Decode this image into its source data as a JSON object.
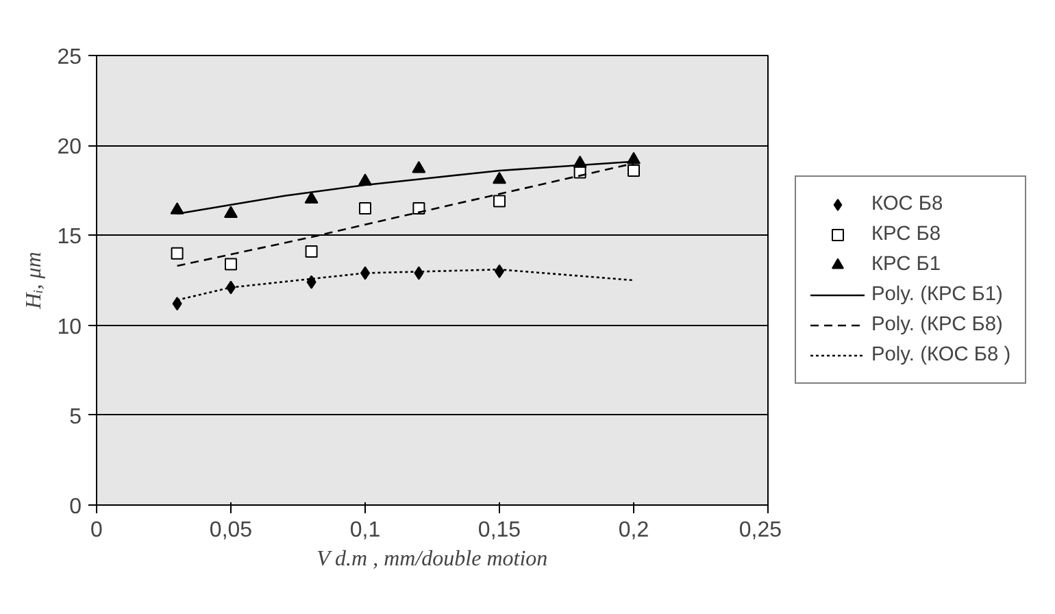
{
  "chart_data": {
    "type": "scatter",
    "xlabel": "V d.m , mm/double motion",
    "ylabel": "Hᵢ, μm",
    "xlim": [
      0,
      0.25
    ],
    "ylim": [
      0,
      25
    ],
    "xticks": [
      0,
      {
        "value": 0.05,
        "label": "0,05"
      },
      {
        "value": 0.1,
        "label": "0,1"
      },
      {
        "value": 0.15,
        "label": "0,15"
      },
      {
        "value": 0.2,
        "label": "0,2"
      },
      {
        "value": 0.25,
        "label": "0,25"
      }
    ],
    "yticks": [
      0,
      5,
      10,
      15,
      20,
      25
    ],
    "grid": "y",
    "legend": "right",
    "series": [
      {
        "name": "КОС Б8",
        "marker": "diamond",
        "color": "#000000",
        "x": [
          0.03,
          0.05,
          0.08,
          0.1,
          0.12,
          0.15
        ],
        "values": [
          11.2,
          12.1,
          12.4,
          12.9,
          12.9,
          13.0
        ]
      },
      {
        "name": "КРС Б8",
        "marker": "square",
        "color": "#000000",
        "x": [
          0.03,
          0.05,
          0.08,
          0.1,
          0.12,
          0.15,
          0.18,
          0.2
        ],
        "values": [
          14.0,
          13.4,
          14.1,
          16.5,
          16.5,
          16.9,
          18.5,
          18.6
        ]
      },
      {
        "name": "КРС Б1",
        "marker": "triangle",
        "color": "#000000",
        "x": [
          0.03,
          0.05,
          0.08,
          0.1,
          0.12,
          0.15,
          0.18,
          0.2
        ],
        "values": [
          16.4,
          16.2,
          17.0,
          18.0,
          18.7,
          18.1,
          19.0,
          19.2
        ]
      },
      {
        "name": "Poly. (КРС Б1)",
        "type": "line",
        "line_style": "solid",
        "color": "#000000",
        "x": [
          0.03,
          0.07,
          0.1,
          0.15,
          0.2
        ],
        "values": [
          16.2,
          17.2,
          17.8,
          18.6,
          19.1
        ]
      },
      {
        "name": "Poly. (КРС Б8)",
        "type": "line",
        "line_style": "dashed",
        "color": "#000000",
        "x": [
          0.03,
          0.08,
          0.1,
          0.15,
          0.2
        ],
        "values": [
          13.3,
          14.9,
          15.6,
          17.3,
          19.0
        ]
      },
      {
        "name": "Poly. (КОС Б8 )",
        "type": "line",
        "line_style": "dotted",
        "color": "#000000",
        "x": [
          0.03,
          0.05,
          0.1,
          0.15,
          0.2
        ],
        "values": [
          11.4,
          12.1,
          12.9,
          13.1,
          12.5
        ]
      }
    ]
  }
}
